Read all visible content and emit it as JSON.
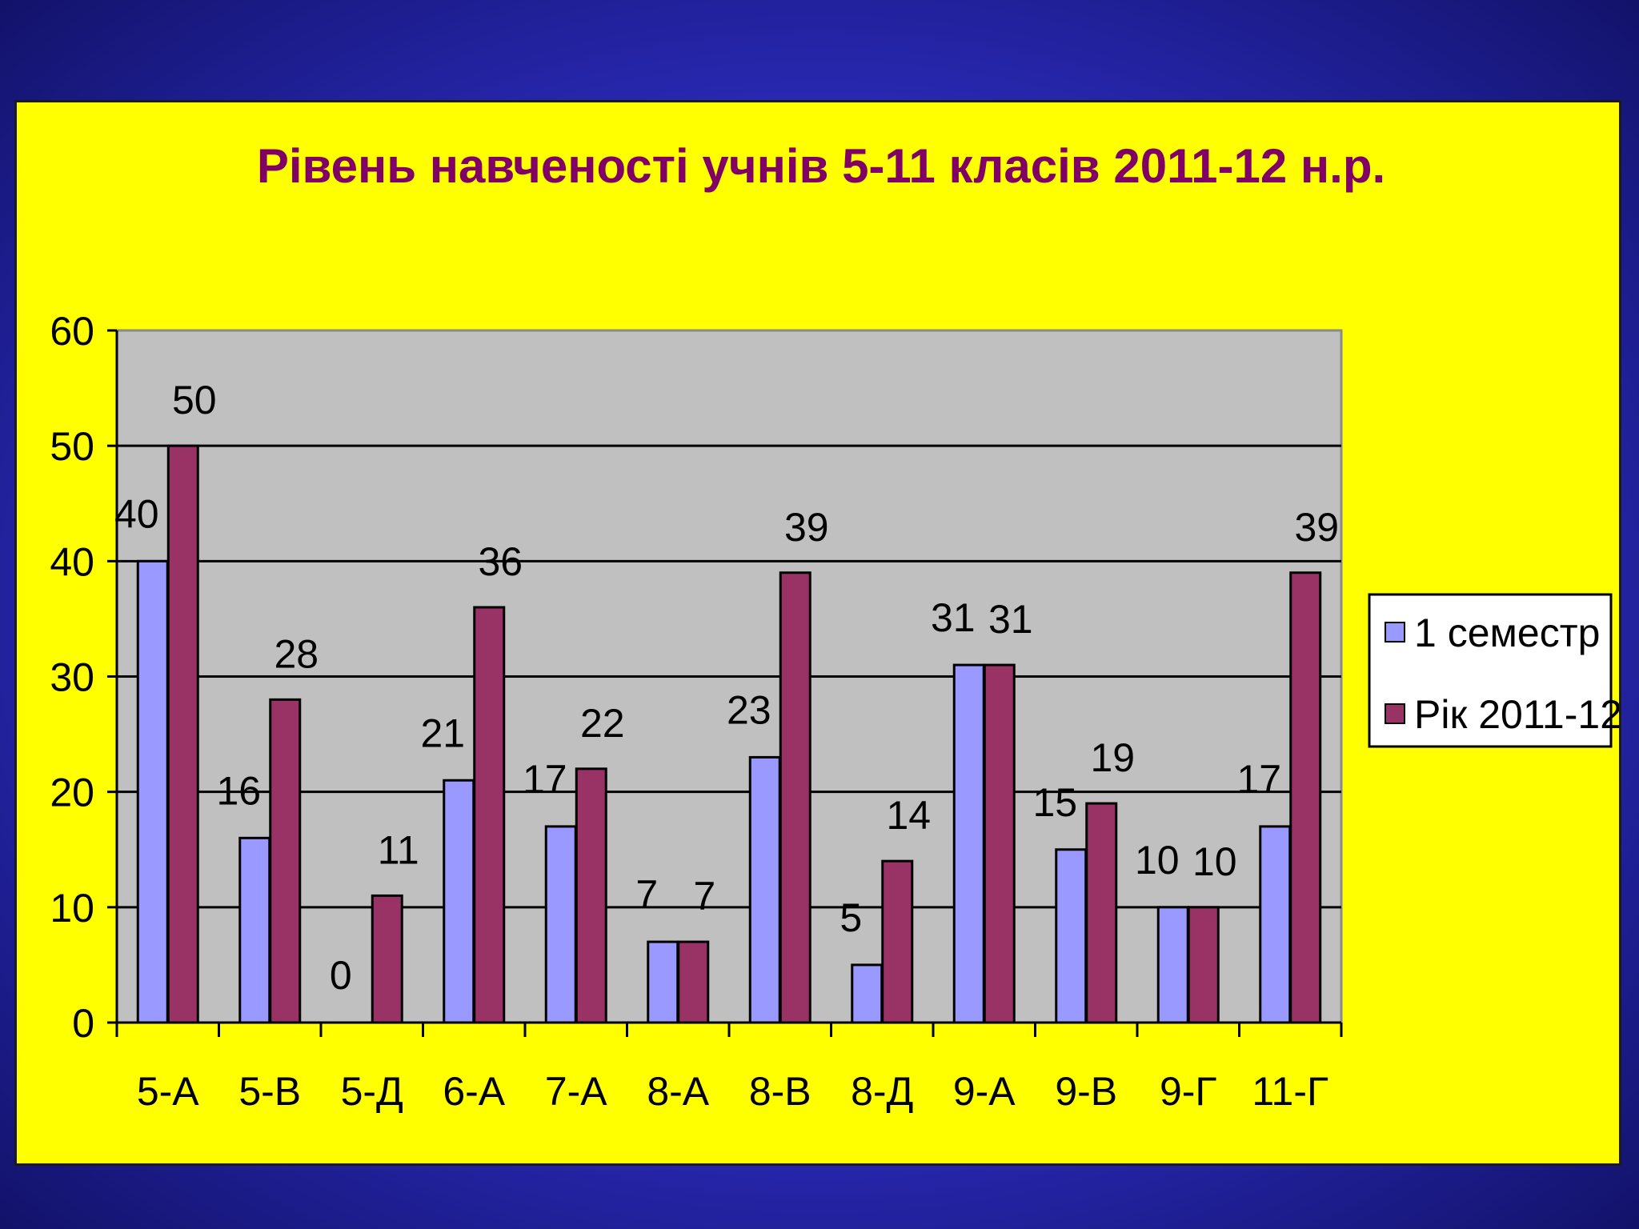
{
  "chart_data": {
    "type": "bar",
    "title": "Рівень навченості учнів 5-11 класів 2011-12 н.р.",
    "xlabel": "",
    "ylabel": "",
    "ylim": [
      0,
      60
    ],
    "yticks": [
      0,
      10,
      20,
      30,
      40,
      50,
      60
    ],
    "grid": true,
    "legend_position": "right",
    "categories": [
      "5-А",
      "5-В",
      "5-Д",
      "6-А",
      "7-А",
      "8-А",
      "8-В",
      "8-Д",
      "9-А",
      "9-В",
      "9-Г",
      "11-Г"
    ],
    "series": [
      {
        "name": "1 семестр",
        "color": "#9999ff",
        "values": [
          40,
          16,
          0,
          21,
          17,
          7,
          23,
          5,
          31,
          15,
          10,
          17
        ]
      },
      {
        "name": "Рік 2011-12",
        "color": "#993366",
        "values": [
          50,
          28,
          11,
          36,
          22,
          7,
          39,
          14,
          31,
          19,
          10,
          39
        ]
      }
    ]
  },
  "colors": {
    "panel_background": "#ffff00",
    "plot_background": "#c0c0c0",
    "title": "#800066",
    "page_background": "#2a2ab8"
  }
}
